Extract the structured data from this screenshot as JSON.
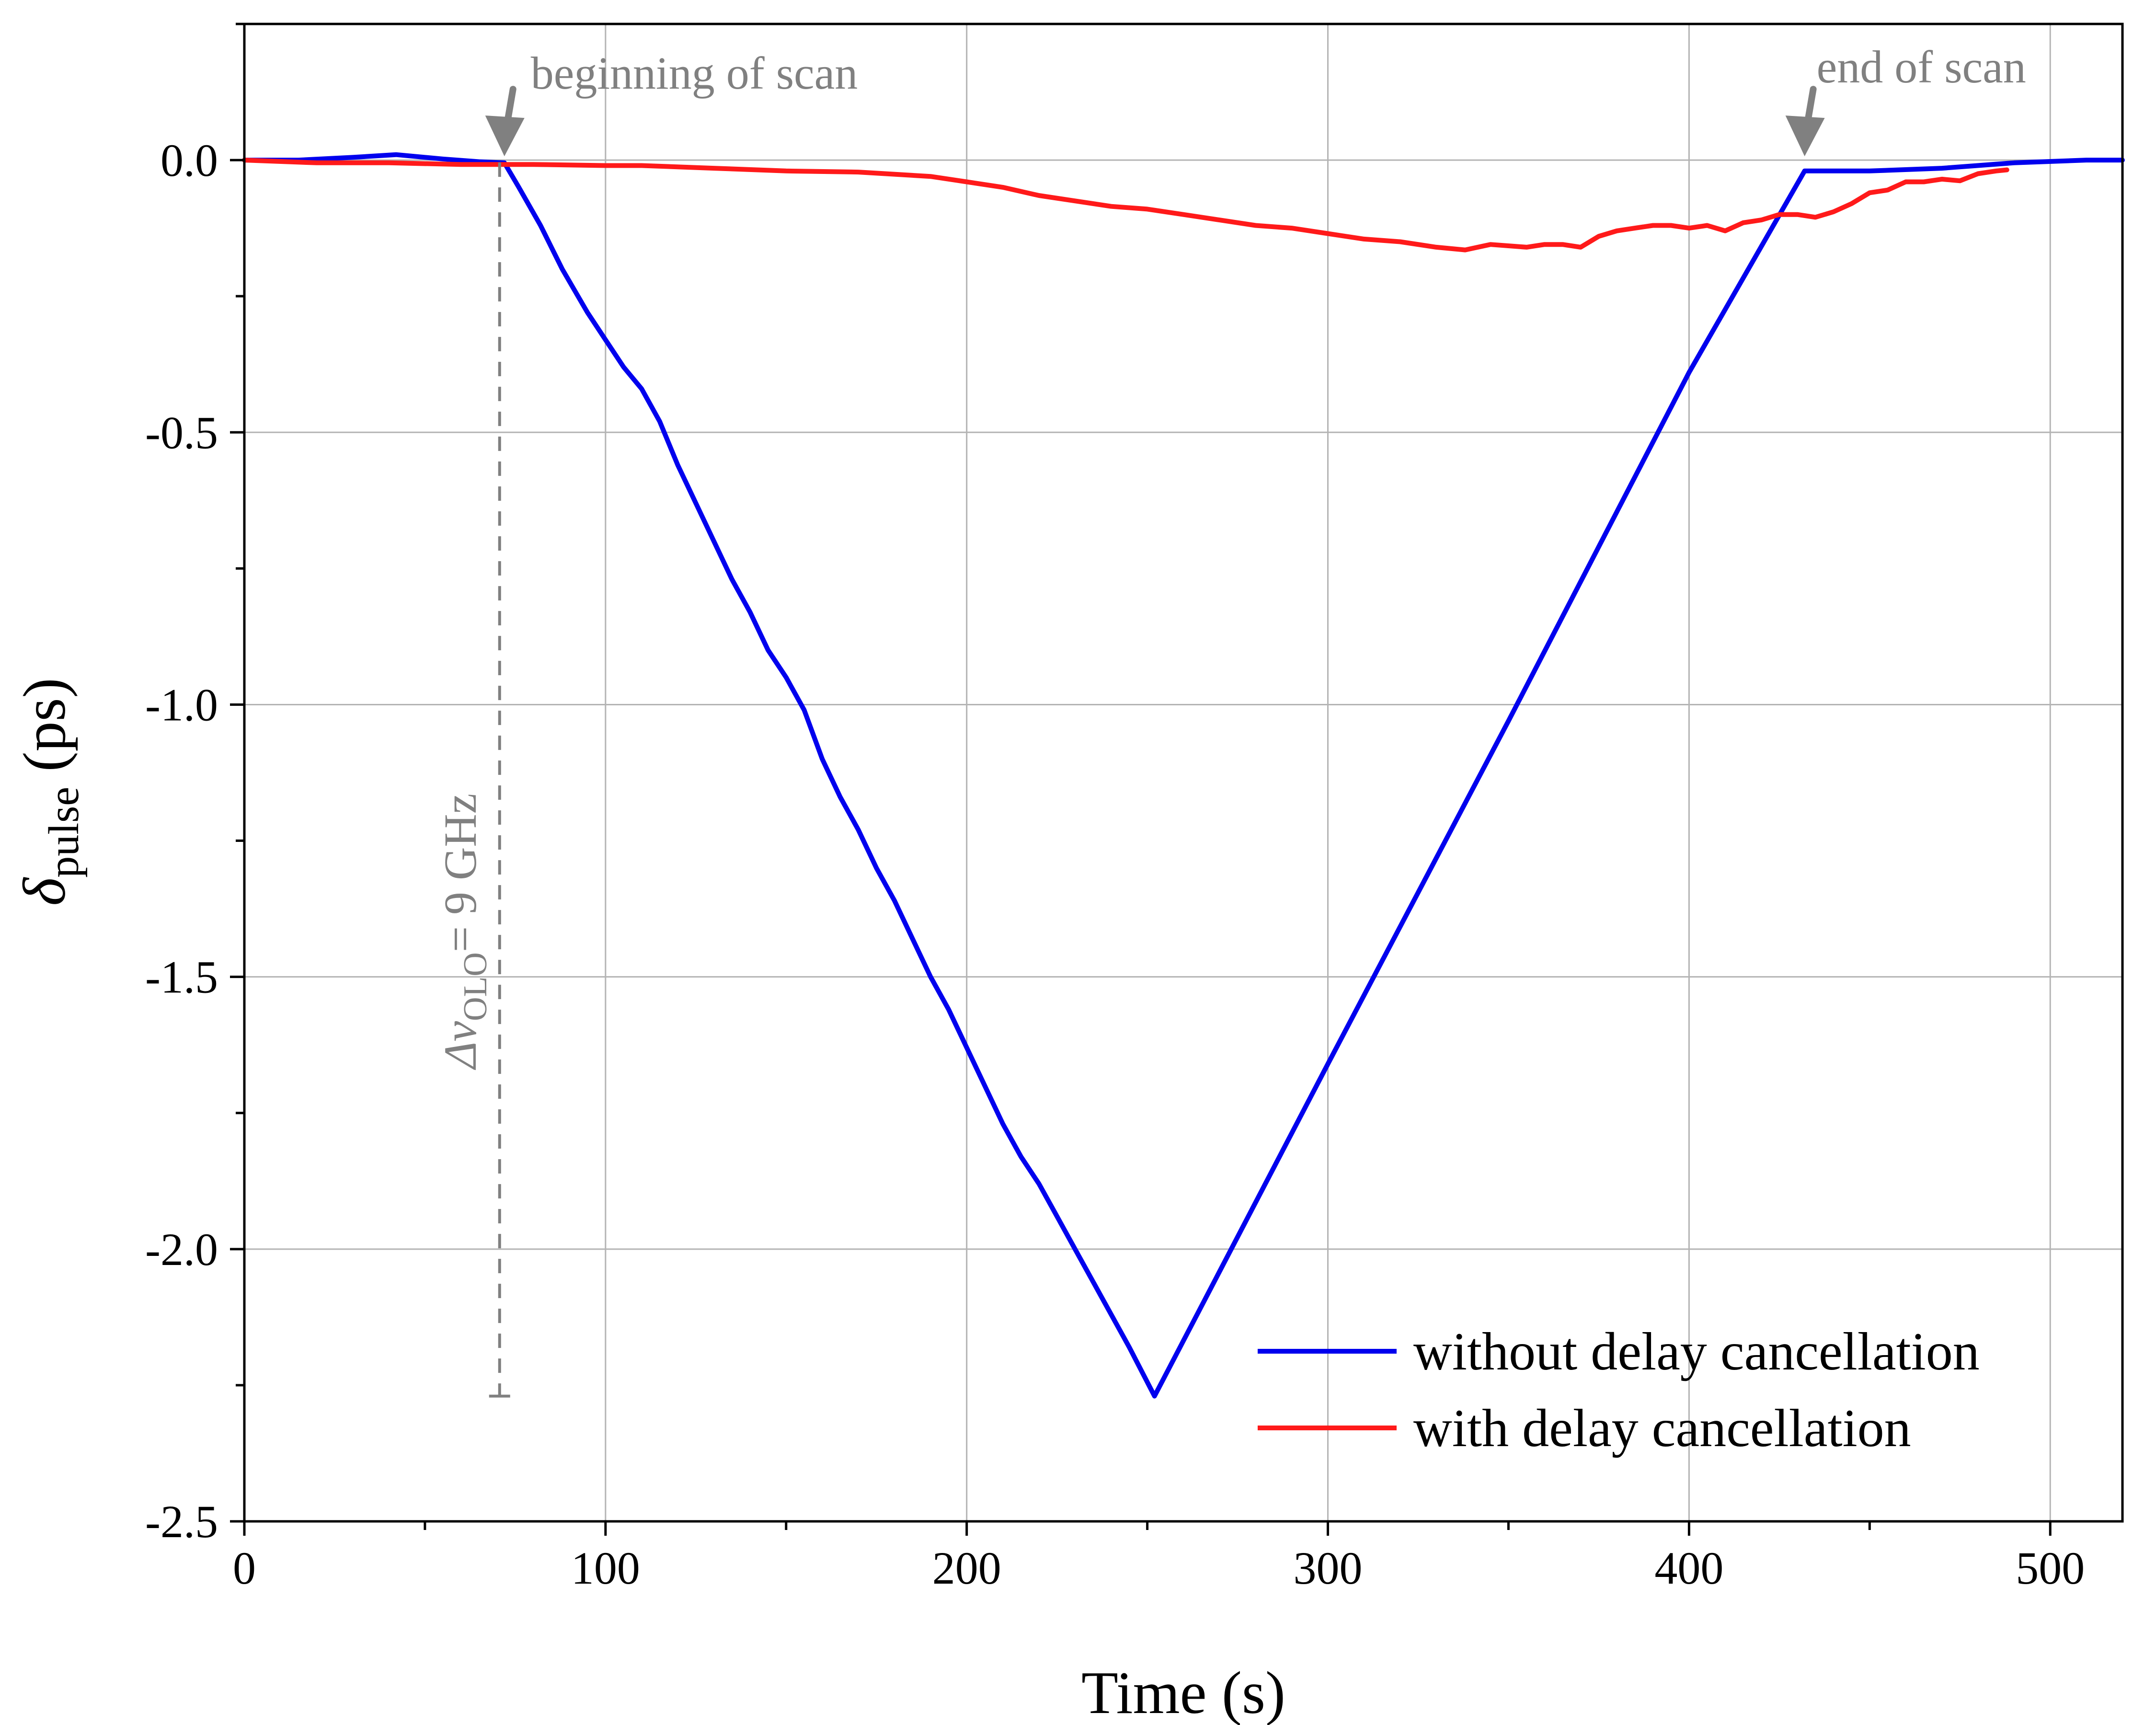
{
  "chart_data": {
    "type": "line",
    "title": "",
    "xlabel": "Time (s)",
    "ylabel": {
      "symbol": "δ",
      "subscript": "pulse",
      "unit": " (ps)"
    },
    "xlim": [
      0,
      520
    ],
    "ylim": [
      -2.5,
      0.25
    ],
    "x_ticks": [
      0,
      100,
      200,
      300,
      400,
      500
    ],
    "x_tick_labels": [
      "0",
      "100",
      "200",
      "300",
      "400",
      "500"
    ],
    "y_ticks": [
      0.0,
      -0.5,
      -1.0,
      -1.5,
      -2.0,
      -2.5
    ],
    "y_tick_labels": [
      "0.0",
      "-0.5",
      "-1.0",
      "-1.5",
      "-2.0",
      "-2.5"
    ],
    "grid": true,
    "legend_position": "bottom-right",
    "series": [
      {
        "name": "without delay cancellation",
        "color": "#0000ee",
        "x": [
          0,
          15,
          30,
          42,
          55,
          65,
          72,
          76,
          82,
          88,
          95,
          100,
          105,
          110,
          115,
          120,
          125,
          130,
          135,
          140,
          145,
          150,
          155,
          160,
          165,
          170,
          175,
          180,
          185,
          190,
          195,
          200,
          205,
          210,
          215,
          220,
          225,
          230,
          235,
          240,
          245,
          252,
          300,
          350,
          400,
          432,
          450,
          470,
          490,
          510,
          520
        ],
        "y": [
          0.0,
          0.0,
          0.005,
          0.01,
          0.002,
          -0.003,
          -0.005,
          -0.05,
          -0.12,
          -0.2,
          -0.28,
          -0.33,
          -0.38,
          -0.42,
          -0.48,
          -0.56,
          -0.63,
          -0.7,
          -0.77,
          -0.83,
          -0.9,
          -0.95,
          -1.01,
          -1.1,
          -1.17,
          -1.23,
          -1.3,
          -1.36,
          -1.43,
          -1.5,
          -1.56,
          -1.63,
          -1.7,
          -1.77,
          -1.83,
          -1.88,
          -1.94,
          -2.0,
          -2.06,
          -2.12,
          -2.18,
          -2.27,
          -1.66,
          -1.03,
          -0.39,
          -0.02,
          -0.02,
          -0.015,
          -0.005,
          0.0,
          0.0
        ]
      },
      {
        "name": "with delay cancellation",
        "color": "#ff1a1a",
        "x": [
          0,
          20,
          40,
          60,
          80,
          100,
          110,
          130,
          150,
          170,
          190,
          200,
          210,
          220,
          230,
          240,
          250,
          260,
          270,
          280,
          290,
          300,
          310,
          320,
          330,
          338,
          345,
          355,
          360,
          365,
          370,
          375,
          380,
          385,
          390,
          395,
          400,
          405,
          410,
          415,
          420,
          425,
          430,
          435,
          440,
          445,
          450,
          455,
          460,
          465,
          470,
          475,
          480,
          485,
          488
        ],
        "y": [
          0.0,
          -0.005,
          -0.005,
          -0.008,
          -0.008,
          -0.01,
          -0.01,
          -0.015,
          -0.02,
          -0.022,
          -0.03,
          -0.04,
          -0.05,
          -0.065,
          -0.075,
          -0.085,
          -0.09,
          -0.1,
          -0.11,
          -0.12,
          -0.125,
          -0.135,
          -0.145,
          -0.15,
          -0.16,
          -0.165,
          -0.155,
          -0.16,
          -0.155,
          -0.155,
          -0.16,
          -0.14,
          -0.13,
          -0.125,
          -0.12,
          -0.12,
          -0.125,
          -0.12,
          -0.13,
          -0.115,
          -0.11,
          -0.1,
          -0.1,
          -0.105,
          -0.095,
          -0.08,
          -0.06,
          -0.055,
          -0.04,
          -0.04,
          -0.035,
          -0.038,
          -0.025,
          -0.02,
          -0.018
        ]
      }
    ],
    "annotations": {
      "begin_label": "beginning of scan",
      "begin_x": 72,
      "end_label": "end of scan",
      "end_x": 432,
      "marker_y": 0.0,
      "vline_x": 72,
      "vline_ymin": -2.27,
      "vline_label_greek": "Δν",
      "vline_label_sub": "OLO",
      "vline_label_rest": "= 9 GHz",
      "annotation_color": "#808080"
    }
  }
}
